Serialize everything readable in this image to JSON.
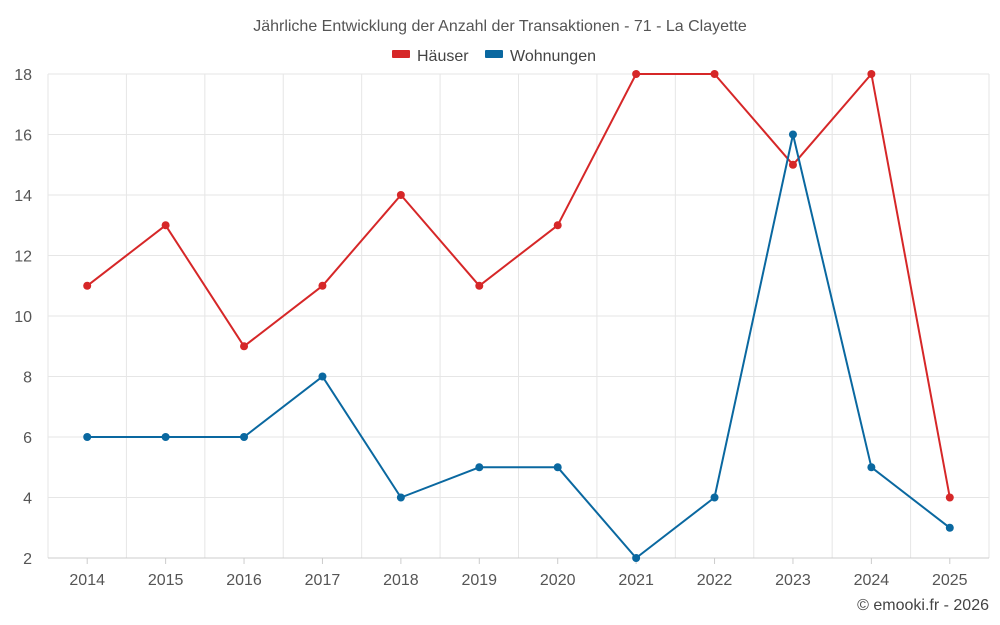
{
  "chart_data": {
    "type": "line",
    "title": "Jährliche Entwicklung der Anzahl der Transaktionen - 71 - La Clayette",
    "categories": [
      "2014",
      "2015",
      "2016",
      "2017",
      "2018",
      "2019",
      "2020",
      "2021",
      "2022",
      "2023",
      "2024",
      "2025"
    ],
    "series": [
      {
        "name": "Häuser",
        "color": "#d62728",
        "values": [
          11,
          13,
          9,
          11,
          14,
          11,
          13,
          18,
          18,
          15,
          18,
          4
        ]
      },
      {
        "name": "Wohnungen",
        "color": "#0a68a0",
        "values": [
          6,
          6,
          6,
          8,
          4,
          5,
          5,
          2,
          4,
          16,
          5,
          3
        ]
      }
    ],
    "ylim": [
      2,
      18
    ],
    "yticks": [
      2,
      4,
      6,
      8,
      10,
      12,
      14,
      16,
      18
    ],
    "grid": true,
    "legend": "top-center",
    "xlabel": "",
    "ylabel": ""
  },
  "credit": "© emooki.fr - 2026"
}
